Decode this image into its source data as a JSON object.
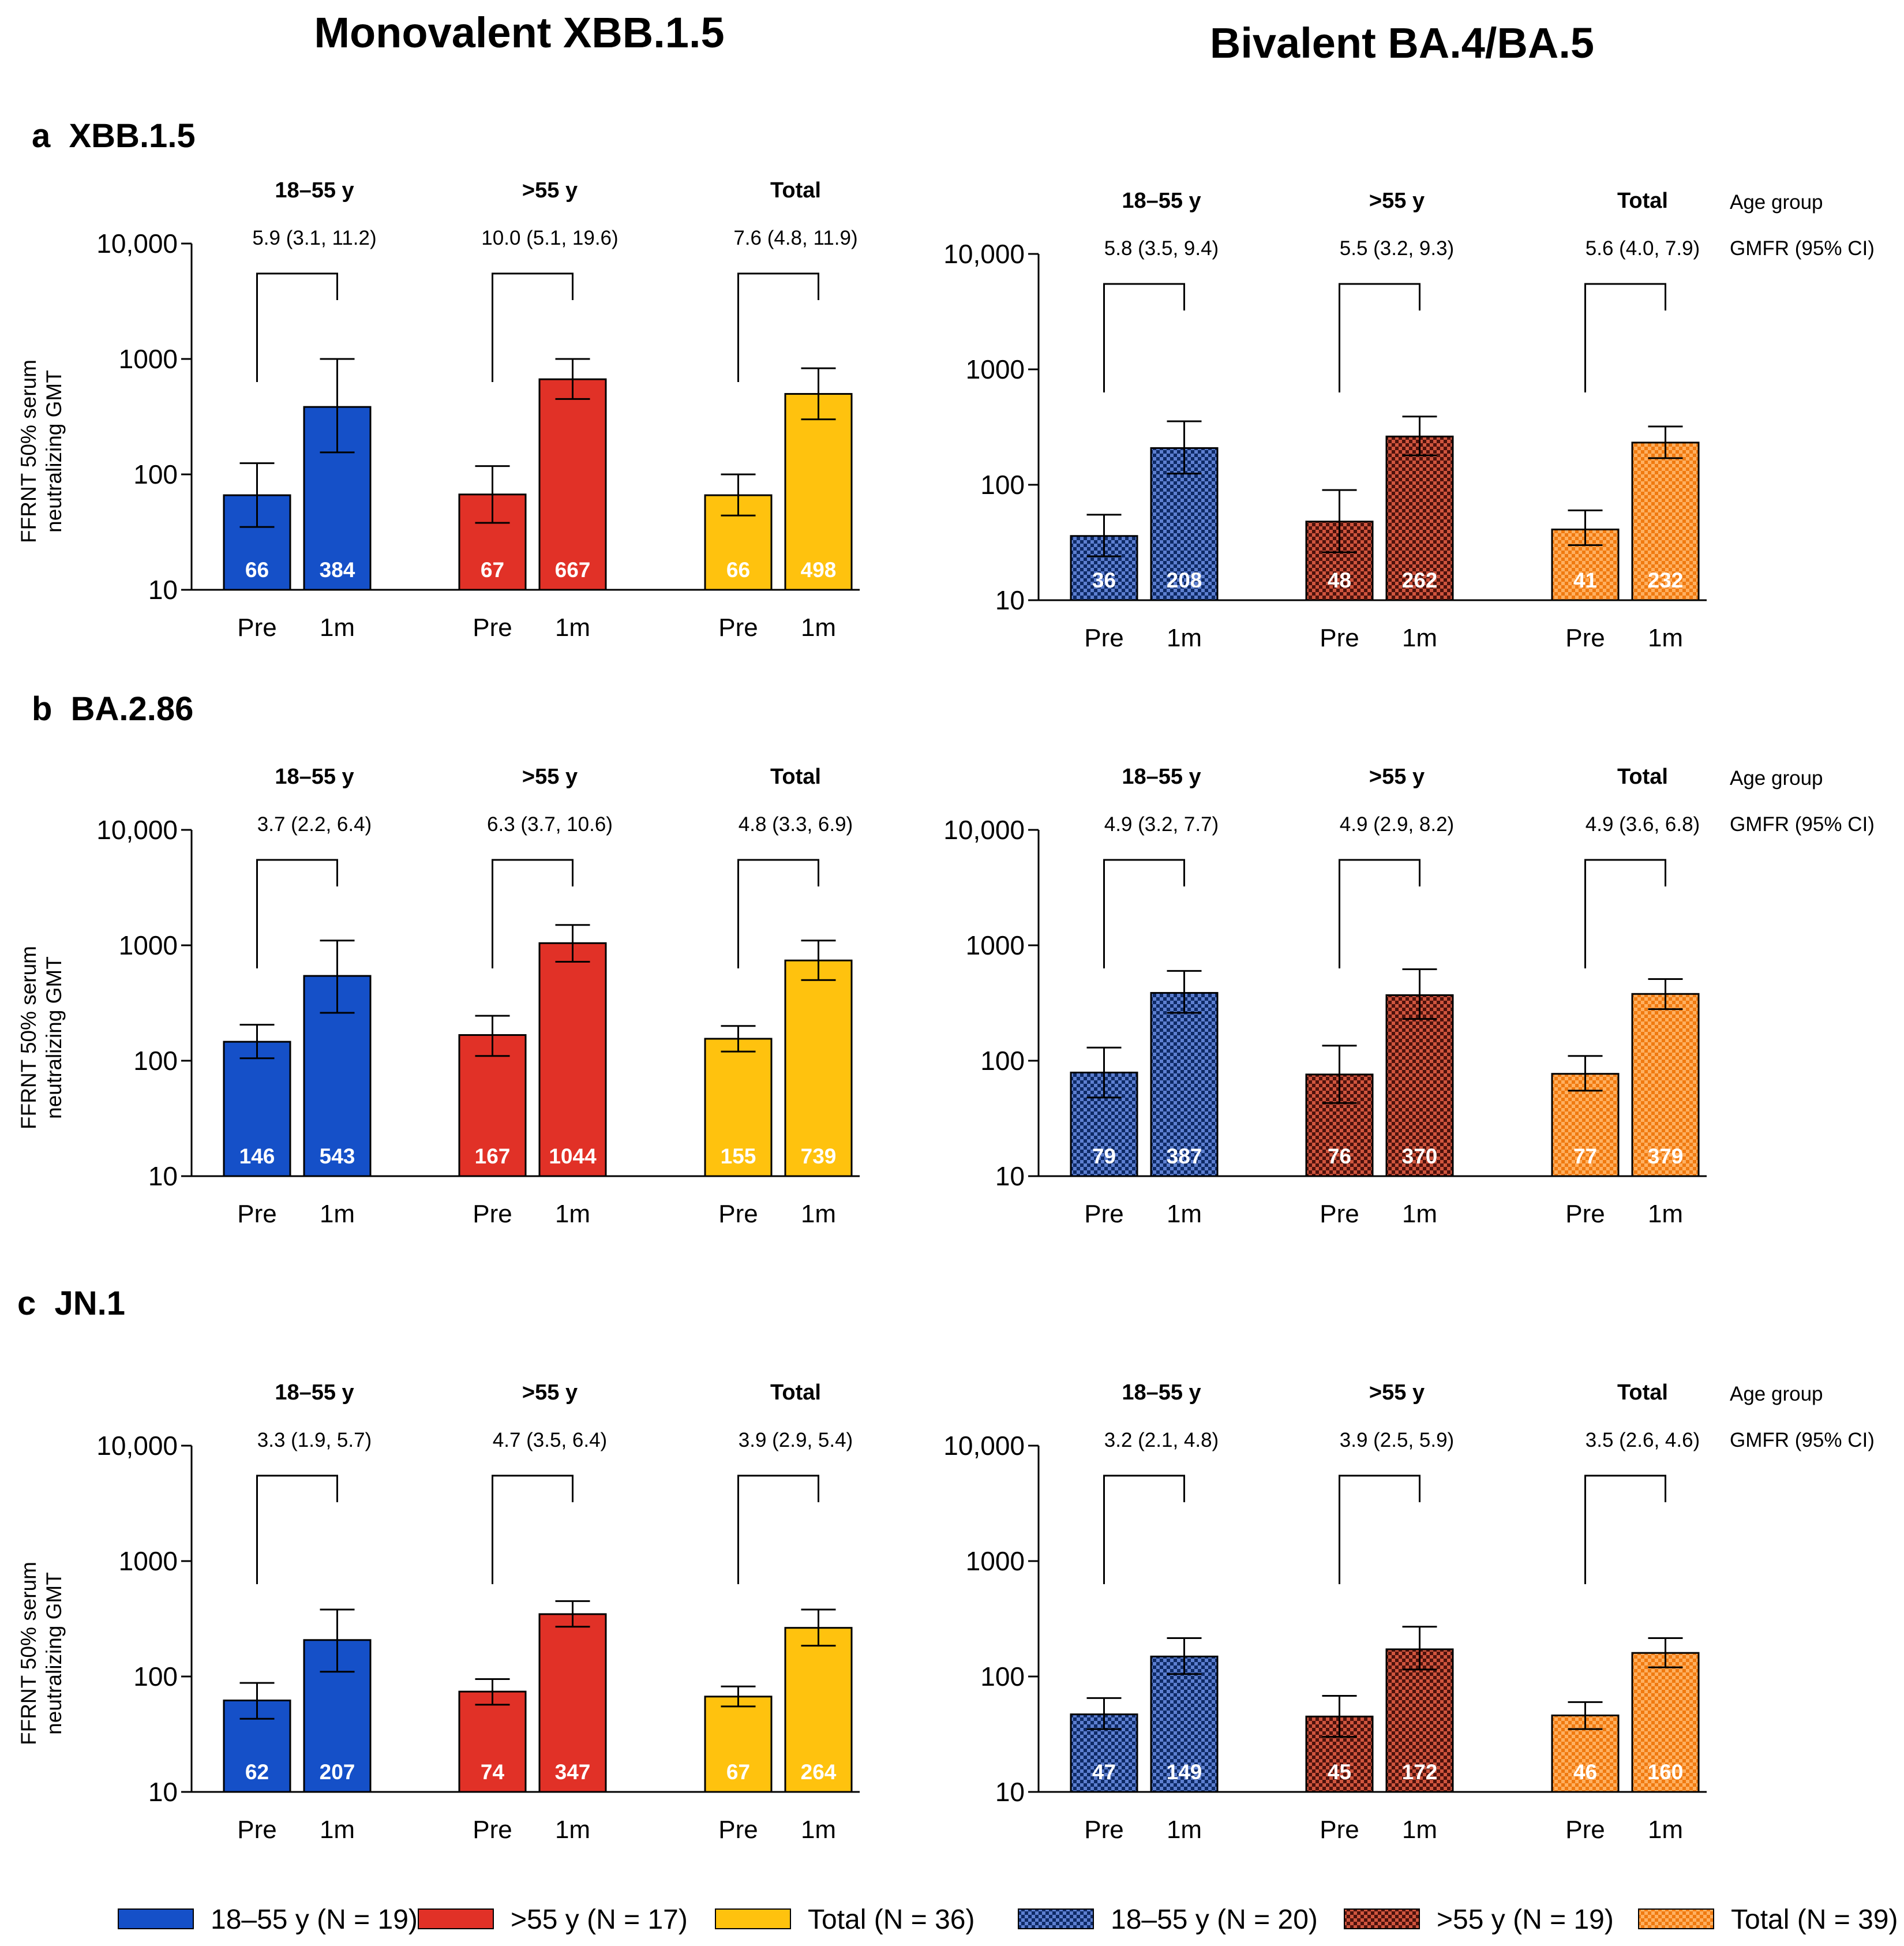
{
  "colors": {
    "blue": "#1550c8",
    "red": "#e13127",
    "yellow": "#ffc20e",
    "navy_check": "#1b3f8a",
    "maroon_check": "#8b2318",
    "orange_check": "#ff8c1a"
  },
  "chart_data": {
    "type": "bar",
    "yscale": "log",
    "ylim": [
      10,
      10000
    ],
    "yticks": [
      "10",
      "100",
      "1000",
      "10,000"
    ],
    "ylabel_line1": "FFRNT 50% serum",
    "ylabel_line2": "neutralizing GMT",
    "column_titles": [
      "Monovalent XBB.1.5",
      "Bivalent BA.4/BA.5"
    ],
    "side_labels": {
      "age": "Age group",
      "gmfr": "GMFR (95% CI)"
    },
    "x_categories": [
      "Pre",
      "1m"
    ],
    "panels": [
      {
        "label": "a  XBB.1.5",
        "charts": [
          {
            "vaccine": "Monovalent XBB.1.5",
            "groups": [
              {
                "name": "18–55 y",
                "gmfr": "5.9 (3.1, 11.2)",
                "pre": 66,
                "pre_ci": [
                  35,
                  125
                ],
                "post": 384,
                "post_ci": [
                  155,
                  1000
                ],
                "color": "blue"
              },
              {
                "name": ">55 y",
                "gmfr": "10.0 (5.1, 19.6)",
                "pre": 67,
                "pre_ci": [
                  38,
                  118
                ],
                "post": 667,
                "post_ci": [
                  450,
                  1000
                ],
                "color": "red"
              },
              {
                "name": "Total",
                "gmfr": "7.6 (4.8, 11.9)",
                "pre": 66,
                "pre_ci": [
                  44,
                  100
                ],
                "post": 498,
                "post_ci": [
                  300,
                  830
                ],
                "color": "yellow"
              }
            ]
          },
          {
            "vaccine": "Bivalent BA.4/BA.5",
            "groups": [
              {
                "name": "18–55 y",
                "gmfr": "5.8 (3.5, 9.4)",
                "pre": 36,
                "pre_ci": [
                  24,
                  55
                ],
                "post": 208,
                "post_ci": [
                  125,
                  355
                ],
                "color": "navy_check"
              },
              {
                "name": ">55 y",
                "gmfr": "5.5 (3.2, 9.3)",
                "pre": 48,
                "pre_ci": [
                  26,
                  90
                ],
                "post": 262,
                "post_ci": [
                  180,
                  390
                ],
                "color": "maroon_check"
              },
              {
                "name": "Total",
                "gmfr": "5.6 (4.0, 7.9)",
                "pre": 41,
                "pre_ci": [
                  30,
                  60
                ],
                "post": 232,
                "post_ci": [
                  170,
                  320
                ],
                "color": "orange_check"
              }
            ]
          }
        ]
      },
      {
        "label": "b  BA.2.86",
        "charts": [
          {
            "vaccine": "Monovalent XBB.1.5",
            "groups": [
              {
                "name": "18–55 y",
                "gmfr": "3.7 (2.2, 6.4)",
                "pre": 146,
                "pre_ci": [
                  105,
                  205
                ],
                "post": 543,
                "post_ci": [
                  260,
                  1100
                ],
                "color": "blue"
              },
              {
                "name": ">55 y",
                "gmfr": "6.3 (3.7, 10.6)",
                "pre": 167,
                "pre_ci": [
                  110,
                  245
                ],
                "post": 1044,
                "post_ci": [
                  720,
                  1500
                ],
                "color": "red"
              },
              {
                "name": "Total",
                "gmfr": "4.8 (3.3, 6.9)",
                "pre": 155,
                "pre_ci": [
                  120,
                  200
                ],
                "post": 739,
                "post_ci": [
                  500,
                  1100
                ],
                "color": "yellow"
              }
            ]
          },
          {
            "vaccine": "Bivalent BA.4/BA.5",
            "groups": [
              {
                "name": "18–55 y",
                "gmfr": "4.9 (3.2, 7.7)",
                "pre": 79,
                "pre_ci": [
                  48,
                  130
                ],
                "post": 387,
                "post_ci": [
                  260,
                  600
                ],
                "color": "navy_check"
              },
              {
                "name": ">55 y",
                "gmfr": "4.9 (2.9, 8.2)",
                "pre": 76,
                "pre_ci": [
                  43,
                  135
                ],
                "post": 370,
                "post_ci": [
                  230,
                  620
                ],
                "color": "maroon_check"
              },
              {
                "name": "Total",
                "gmfr": "4.9 (3.6, 6.8)",
                "pre": 77,
                "pre_ci": [
                  55,
                  110
                ],
                "post": 379,
                "post_ci": [
                  280,
                  510
                ],
                "color": "orange_check"
              }
            ]
          }
        ]
      },
      {
        "label": "c  JN.1",
        "charts": [
          {
            "vaccine": "Monovalent XBB.1.5",
            "groups": [
              {
                "name": "18–55 y",
                "gmfr": "3.3 (1.9, 5.7)",
                "pre": 62,
                "pre_ci": [
                  43,
                  88
                ],
                "post": 207,
                "post_ci": [
                  110,
                  380
                ],
                "color": "blue"
              },
              {
                "name": ">55 y",
                "gmfr": "4.7 (3.5, 6.4)",
                "pre": 74,
                "pre_ci": [
                  57,
                  95
                ],
                "post": 347,
                "post_ci": [
                  270,
                  450
                ],
                "color": "red"
              },
              {
                "name": "Total",
                "gmfr": "3.9 (2.9, 5.4)",
                "pre": 67,
                "pre_ci": [
                  55,
                  82
                ],
                "post": 264,
                "post_ci": [
                  185,
                  380
                ],
                "color": "yellow"
              }
            ]
          },
          {
            "vaccine": "Bivalent BA.4/BA.5",
            "groups": [
              {
                "name": "18–55 y",
                "gmfr": "3.2 (2.1, 4.8)",
                "pre": 47,
                "pre_ci": [
                  35,
                  65
                ],
                "post": 149,
                "post_ci": [
                  105,
                  215
                ],
                "color": "navy_check"
              },
              {
                "name": ">55 y",
                "gmfr": "3.9 (2.5, 5.9)",
                "pre": 45,
                "pre_ci": [
                  30,
                  68
                ],
                "post": 172,
                "post_ci": [
                  115,
                  270
                ],
                "color": "maroon_check"
              },
              {
                "name": "Total",
                "gmfr": "3.5 (2.6, 4.6)",
                "pre": 46,
                "pre_ci": [
                  35,
                  60
                ],
                "post": 160,
                "post_ci": [
                  120,
                  215
                ],
                "color": "orange_check"
              }
            ]
          }
        ]
      }
    ],
    "legend": [
      {
        "label": "18–55 y (N = 19)",
        "color": "blue"
      },
      {
        "label": ">55 y (N = 17)",
        "color": "red"
      },
      {
        "label": "Total (N = 36)",
        "color": "yellow"
      },
      {
        "label": "18–55 y (N = 20)",
        "color": "navy_check"
      },
      {
        "label": ">55 y (N = 19)",
        "color": "maroon_check"
      },
      {
        "label": "Total (N = 39)",
        "color": "orange_check"
      }
    ]
  }
}
